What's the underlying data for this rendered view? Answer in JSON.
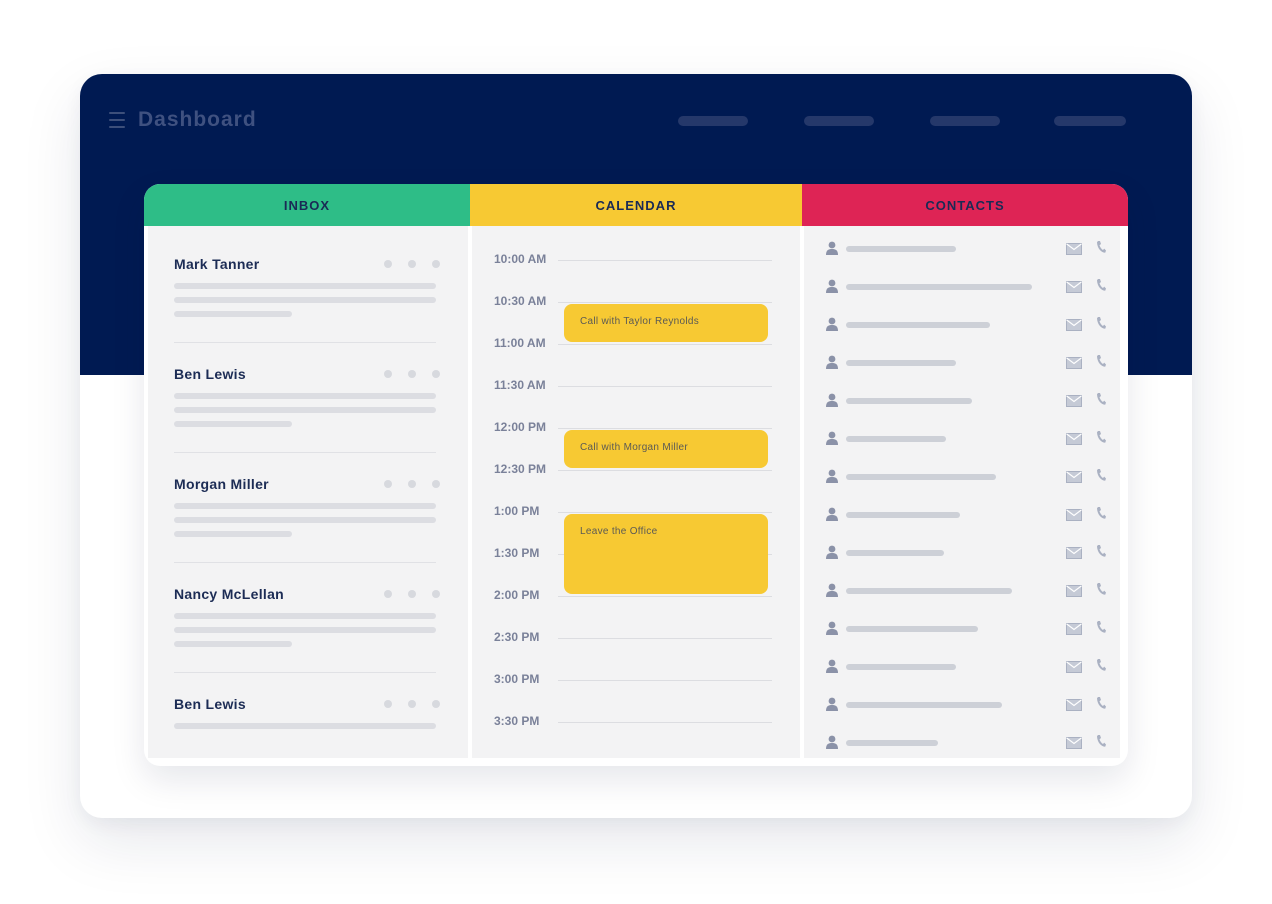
{
  "app": {
    "title": "Dashboard"
  },
  "columns": {
    "inbox": {
      "label": "INBOX",
      "color": "#2ebd87"
    },
    "calendar": {
      "label": "CALENDAR",
      "color": "#f7c933"
    },
    "contacts": {
      "label": "CONTACTS",
      "color": "#de2455"
    }
  },
  "inbox": {
    "messages": [
      {
        "sender": "Mark Tanner"
      },
      {
        "sender": "Ben Lewis"
      },
      {
        "sender": "Morgan Miller"
      },
      {
        "sender": "Nancy McLellan"
      },
      {
        "sender": "Ben Lewis"
      }
    ]
  },
  "calendar": {
    "times": [
      "10:00 AM",
      "10:30 AM",
      "11:00 AM",
      "11:30 AM",
      "12:00 PM",
      "12:30 PM",
      "1:00 PM",
      "1:30 PM",
      "2:00 PM",
      "2:30 PM",
      "3:00 PM",
      "3:30 PM"
    ],
    "events": [
      {
        "title": "Call with Taylor Reynolds"
      },
      {
        "title": "Call with Morgan Miller"
      },
      {
        "title": "Leave the Office"
      }
    ]
  },
  "contacts": {
    "icons": {
      "person": "person-icon",
      "mail": "mail-icon",
      "phone": "phone-icon"
    }
  }
}
